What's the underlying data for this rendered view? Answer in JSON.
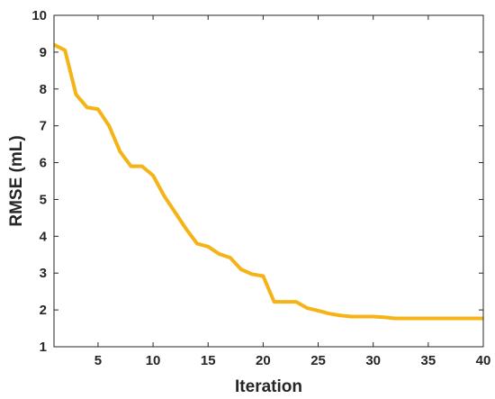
{
  "chart_data": {
    "type": "line",
    "title": "",
    "xlabel": "Iteration",
    "ylabel": "RMSE (mL)",
    "xlim": [
      1,
      40
    ],
    "ylim": [
      1,
      10
    ],
    "xticks": [
      5,
      10,
      15,
      20,
      25,
      30,
      35,
      40
    ],
    "yticks": [
      1,
      2,
      3,
      4,
      5,
      6,
      7,
      8,
      9,
      10
    ],
    "grid": false,
    "legend": "none",
    "series": [
      {
        "color": "#F5B316",
        "x": [
          1,
          2,
          3,
          4,
          5,
          6,
          7,
          8,
          9,
          10,
          11,
          12,
          13,
          14,
          15,
          16,
          17,
          18,
          19,
          20,
          21,
          22,
          23,
          24,
          25,
          26,
          27,
          28,
          29,
          30,
          31,
          32,
          33,
          34,
          35,
          36,
          37,
          38,
          39,
          40
        ],
        "y": [
          9.2,
          9.05,
          7.85,
          7.5,
          7.45,
          7.0,
          6.3,
          5.9,
          5.9,
          5.65,
          5.1,
          4.65,
          4.2,
          3.8,
          3.72,
          3.52,
          3.42,
          3.1,
          2.97,
          2.92,
          2.22,
          2.22,
          2.22,
          2.05,
          1.98,
          1.9,
          1.85,
          1.82,
          1.82,
          1.82,
          1.8,
          1.77,
          1.77,
          1.77,
          1.77,
          1.77,
          1.77,
          1.77,
          1.77,
          1.77
        ]
      }
    ]
  }
}
